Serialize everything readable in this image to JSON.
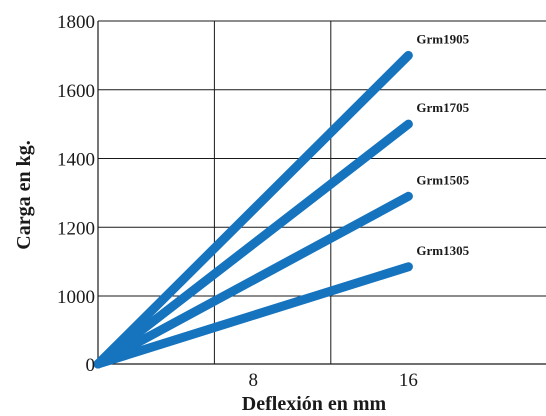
{
  "chart_data": {
    "type": "line",
    "xlabel": "Deflexión en mm",
    "ylabel": "Carga en kg.",
    "x_ticks": [
      {
        "value": 8,
        "label": "8"
      },
      {
        "value": 16,
        "label": "16"
      }
    ],
    "y_ticks": [
      {
        "value": 0,
        "label": "0"
      },
      {
        "value": 1000,
        "label": "1000"
      },
      {
        "value": 1200,
        "label": "1200"
      },
      {
        "value": 1400,
        "label": "1400"
      },
      {
        "value": 1600,
        "label": "1600"
      },
      {
        "value": 1800,
        "label": "1800"
      }
    ],
    "x_gridlines": [
      6,
      12
    ],
    "y_gridlines": [
      1000,
      1200,
      1400,
      1600,
      1800
    ],
    "grid": true,
    "series_color": "#1674bf",
    "series": [
      {
        "name": "Grm1905",
        "x": [
          0,
          16
        ],
        "y": [
          0,
          1700
        ]
      },
      {
        "name": "Grm1705",
        "x": [
          0,
          16
        ],
        "y": [
          0,
          1500
        ]
      },
      {
        "name": "Grm1505",
        "x": [
          0,
          16
        ],
        "y": [
          0,
          1290
        ]
      },
      {
        "name": "Grm1305",
        "x": [
          0,
          16
        ],
        "y": [
          0,
          1085
        ]
      }
    ]
  }
}
